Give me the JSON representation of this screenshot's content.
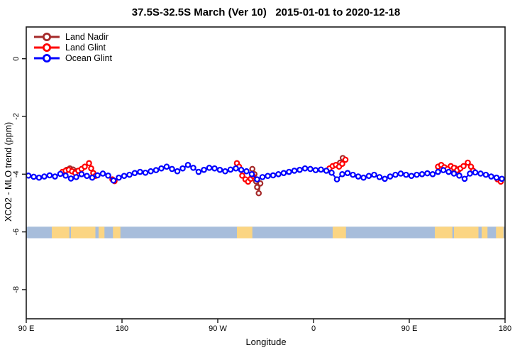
{
  "title": "37.5S-32.5S March (Ver 10)   2015-01-01 to 2020-12-18",
  "x_axis_label": "Longitude",
  "y_axis_label": "XCO2 - MLO trend (ppm)",
  "legend": {
    "position": "top-left",
    "items": [
      {
        "label": "Land Nadir",
        "color": "#A52A2A"
      },
      {
        "label": "Land Glint",
        "color": "#FF0000"
      },
      {
        "label": "Ocean Glint",
        "color": "#0000FF"
      }
    ]
  },
  "chart_data": {
    "type": "scatter",
    "title": "37.5S-32.5S March (Ver 10)   2015-01-01 to 2020-12-18",
    "xlabel": "Longitude",
    "ylabel": "XCO2 - MLO trend (ppm)",
    "xlim": [
      90,
      540
    ],
    "ylim": [
      -9.1,
      1.1
    ],
    "grid": false,
    "legend_position": "top-left",
    "marker": "open-circle",
    "x_ticks": [
      {
        "value": 90,
        "label": "90 E"
      },
      {
        "value": 180,
        "label": "180"
      },
      {
        "value": 270,
        "label": "90 W"
      },
      {
        "value": 360,
        "label": "0"
      },
      {
        "value": 450,
        "label": "90 E"
      },
      {
        "value": 540,
        "label": "180"
      }
    ],
    "y_ticks": [
      {
        "value": 0,
        "label": "0"
      },
      {
        "value": -2,
        "label": "-2"
      },
      {
        "value": -4,
        "label": "-4"
      },
      {
        "value": -6,
        "label": "-6"
      },
      {
        "value": -8,
        "label": "-8"
      }
    ],
    "series": [
      {
        "name": "Land Nadir",
        "color": "#A52A2A",
        "segments": [
          [
            [
              128,
              -3.85
            ],
            [
              131,
              -3.8
            ],
            [
              134,
              -3.84
            ],
            [
              137,
              -3.9
            ]
          ],
          [
            [
              302.5,
              -3.82
            ],
            [
              304.5,
              -4.0
            ],
            [
              306,
              -4.25
            ],
            [
              307,
              -4.45
            ],
            [
              308.5,
              -4.66
            ],
            [
              310,
              -4.32
            ]
          ],
          [
            [
              385,
              -3.6
            ],
            [
              387.5,
              -3.44
            ]
          ],
          [
            [
              490,
              -3.82
            ],
            [
              493,
              -3.79
            ],
            [
              496,
              -3.86
            ]
          ]
        ]
      },
      {
        "name": "Land Glint",
        "color": "#FF0000",
        "segments": [
          [
            [
              124,
              -3.92
            ],
            [
              127,
              -3.88
            ],
            [
              130,
              -3.85
            ],
            [
              133,
              -3.9
            ],
            [
              136,
              -3.96
            ],
            [
              139,
              -3.88
            ],
            [
              142,
              -3.82
            ],
            [
              145,
              -3.74
            ],
            [
              149,
              -3.62
            ],
            [
              151,
              -3.8
            ],
            [
              153,
              -3.96
            ],
            [
              155,
              -4.06
            ]
          ],
          [
            [
              171,
              -4.18
            ],
            [
              173,
              -4.24
            ]
          ],
          [
            [
              288,
              -3.62
            ],
            [
              290,
              -3.74
            ],
            [
              293,
              -4.05
            ],
            [
              296,
              -4.18
            ],
            [
              298.5,
              -4.26
            ],
            [
              301,
              -4.16
            ],
            [
              303,
              -4.06
            ]
          ],
          [
            [
              375,
              -3.8
            ],
            [
              378,
              -3.72
            ],
            [
              381,
              -3.68
            ],
            [
              384,
              -3.74
            ],
            [
              387,
              -3.64
            ],
            [
              390,
              -3.5
            ]
          ],
          [
            [
              477,
              -3.74
            ],
            [
              480,
              -3.68
            ],
            [
              483,
              -3.76
            ],
            [
              486,
              -3.82
            ],
            [
              489,
              -3.72
            ],
            [
              492,
              -3.78
            ],
            [
              495,
              -3.86
            ],
            [
              498,
              -3.8
            ],
            [
              501,
              -3.72
            ],
            [
              505,
              -3.6
            ],
            [
              508,
              -3.74
            ],
            [
              510,
              -3.88
            ]
          ],
          [
            [
              533,
              -4.18
            ],
            [
              536,
              -4.26
            ]
          ]
        ]
      },
      {
        "name": "Ocean Glint",
        "color": "#0000FF",
        "segments": [
          [
            [
              92,
              -4.05
            ],
            [
              97,
              -4.09
            ],
            [
              102,
              -4.12
            ],
            [
              107,
              -4.08
            ],
            [
              112,
              -4.04
            ],
            [
              117,
              -4.08
            ],
            [
              122,
              -3.99
            ],
            [
              127,
              -4.05
            ],
            [
              132,
              -4.15
            ],
            [
              137,
              -4.1
            ],
            [
              142,
              -4.0
            ],
            [
              147,
              -4.06
            ],
            [
              152,
              -4.12
            ],
            [
              157,
              -4.04
            ],
            [
              162,
              -3.98
            ],
            [
              167,
              -4.05
            ],
            [
              172,
              -4.22
            ],
            [
              177,
              -4.12
            ],
            [
              182,
              -4.06
            ],
            [
              187,
              -4.02
            ],
            [
              192,
              -3.96
            ],
            [
              197,
              -3.92
            ],
            [
              202,
              -3.95
            ],
            [
              207,
              -3.9
            ],
            [
              212,
              -3.86
            ],
            [
              217,
              -3.8
            ],
            [
              222,
              -3.74
            ],
            [
              227,
              -3.82
            ],
            [
              232,
              -3.9
            ],
            [
              237,
              -3.8
            ],
            [
              242,
              -3.68
            ],
            [
              247,
              -3.78
            ],
            [
              252,
              -3.92
            ],
            [
              257,
              -3.85
            ],
            [
              262,
              -3.78
            ],
            [
              267,
              -3.8
            ],
            [
              272,
              -3.85
            ],
            [
              277,
              -3.9
            ],
            [
              282,
              -3.84
            ],
            [
              287,
              -3.8
            ],
            [
              292,
              -3.85
            ],
            [
              297,
              -3.9
            ],
            [
              302,
              -4.0
            ],
            [
              307,
              -4.18
            ],
            [
              312,
              -4.1
            ],
            [
              317,
              -4.06
            ],
            [
              322,
              -4.04
            ],
            [
              327,
              -4.0
            ],
            [
              332,
              -3.96
            ],
            [
              337,
              -3.92
            ],
            [
              342,
              -3.88
            ],
            [
              347,
              -3.85
            ],
            [
              352,
              -3.8
            ],
            [
              357,
              -3.82
            ],
            [
              362,
              -3.86
            ],
            [
              367,
              -3.84
            ],
            [
              372,
              -3.88
            ],
            [
              377,
              -3.95
            ],
            [
              382,
              -4.18
            ],
            [
              387,
              -4.0
            ],
            [
              392,
              -3.96
            ],
            [
              397,
              -4.02
            ],
            [
              402,
              -4.08
            ],
            [
              407,
              -4.12
            ],
            [
              412,
              -4.06
            ],
            [
              417,
              -4.02
            ],
            [
              422,
              -4.1
            ],
            [
              427,
              -4.16
            ],
            [
              432,
              -4.08
            ],
            [
              437,
              -4.02
            ],
            [
              442,
              -3.98
            ],
            [
              447,
              -4.02
            ],
            [
              452,
              -4.06
            ],
            [
              457,
              -4.02
            ],
            [
              462,
              -4.0
            ],
            [
              467,
              -3.97
            ],
            [
              472,
              -4.0
            ],
            [
              477,
              -3.92
            ],
            [
              482,
              -3.86
            ],
            [
              487,
              -3.92
            ],
            [
              492,
              -3.98
            ],
            [
              497,
              -4.05
            ],
            [
              502,
              -4.16
            ],
            [
              507,
              -3.98
            ],
            [
              512,
              -3.94
            ],
            [
              517,
              -3.98
            ],
            [
              522,
              -4.02
            ],
            [
              527,
              -4.08
            ],
            [
              532,
              -4.12
            ],
            [
              537,
              -4.16
            ]
          ]
        ]
      }
    ],
    "map_strip": {
      "ocean_color": "#A7BDDB",
      "land_color": "#FBD583",
      "y_top": -5.82,
      "y_bottom": -6.22,
      "land_patches_lon": [
        [
          114,
          130.5
        ],
        [
          132,
          155
        ],
        [
          158,
          163.5
        ],
        [
          171.5,
          178.5
        ],
        [
          288,
          302.5
        ],
        [
          378,
          390.5
        ],
        [
          474,
          490.5
        ],
        [
          492,
          515
        ],
        [
          518,
          523.5
        ],
        [
          531.5,
          538.5
        ]
      ]
    }
  }
}
